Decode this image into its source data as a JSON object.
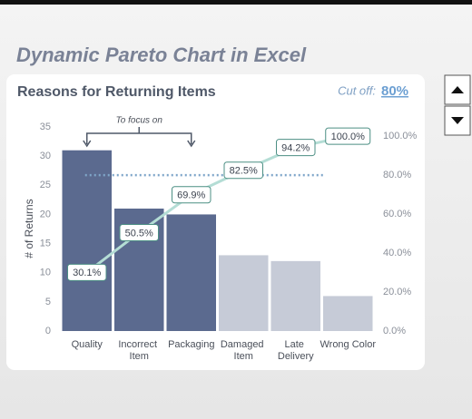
{
  "page_title": "Dynamic Pareto Chart in Excel",
  "chart_data": {
    "type": "pareto",
    "title": "Reasons for Returning Items",
    "y_label": "# of Returns",
    "annotation": "To focus on",
    "cutoff": {
      "label": "Cut off:",
      "value": 80,
      "value_label": "80%",
      "color": "#7fa6c9"
    },
    "categories": [
      "Quality",
      "Incorrect Item",
      "Packaging",
      "Damaged Item",
      "Late Delivery",
      "Wrong Color"
    ],
    "series": [
      {
        "type": "bar",
        "values": [
          31,
          21,
          20,
          13,
          12,
          6
        ],
        "colors": [
          "#5b6a8f",
          "#5b6a8f",
          "#5b6a8f",
          "#c6cbd7",
          "#c6cbd7",
          "#c6cbd7"
        ]
      },
      {
        "type": "line",
        "axis": "y2",
        "color": "#b4ddd5",
        "label_border": "#4c8f84",
        "values": [
          30.1,
          50.5,
          69.9,
          82.5,
          94.2,
          100.0
        ],
        "value_labels": [
          "30.1%",
          "50.5%",
          "69.9%",
          "82.5%",
          "94.2%",
          "100.0%"
        ]
      }
    ],
    "ylim": [
      0,
      35
    ],
    "yticks": [
      0,
      5,
      10,
      15,
      20,
      25,
      30,
      35
    ],
    "y2lim": [
      0,
      104.7
    ],
    "y2ticks": [
      {
        "value": 0,
        "label": "0.0%"
      },
      {
        "value": 20,
        "label": "20.0%"
      },
      {
        "value": 40,
        "label": "40.0%"
      },
      {
        "value": 60,
        "label": "60.0%"
      },
      {
        "value": 80,
        "label": "80.0%"
      },
      {
        "value": 100,
        "label": "100.0%"
      }
    ]
  }
}
